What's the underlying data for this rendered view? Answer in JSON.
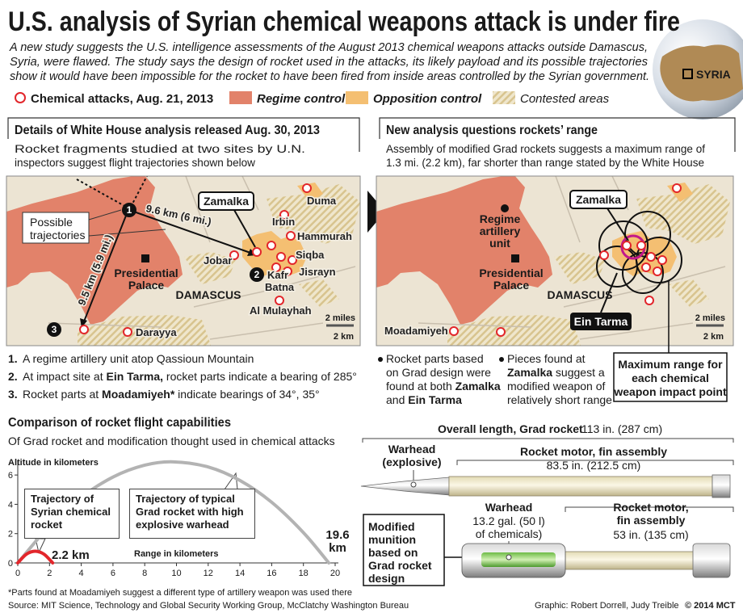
{
  "header": {
    "title": "U.S. analysis of Syrian chemical weapons attack is under fire",
    "intro": [
      "A new study suggests the U.S. intelligence assessments of the August 2013 chemical weapons attacks outside Damascus,",
      "Syria, were flawed. The study says the design of rocket used in the attacks, its likely payload and its possible trajectories",
      "show it would have been impossible for the rocket to have been fired from inside areas controlled by the Syrian government."
    ]
  },
  "globe_label": "SYRIA",
  "legend": [
    "Chemical attacks, Aug. 21, 2013",
    "Regime control",
    "Opposition control",
    "Contested areas"
  ],
  "left_panel": {
    "title": "Details of White House analysis released Aug. 30, 2013",
    "description": [
      "Rocket fragments studied at two sites by U.N.",
      "inspectors suggest flight trajectories shown below"
    ]
  },
  "right_panel": {
    "title": "New analysis questions rockets’ range",
    "description": [
      "Assembly of modified Grad rockets suggests a maximum range of",
      "1.3 mi. (2.2 km), far shorter than range stated by the White House"
    ]
  },
  "left_map": {
    "labels": [
      "Zamalka",
      "Duma",
      "Irbin",
      "Hammurah",
      "Siqba",
      "Jisrayn",
      "Jobar",
      "Kafr",
      "Batna",
      "Presidential",
      "Palace",
      "DAMASCUS",
      "Al Mulayhah",
      "Darayya"
    ],
    "trajectory_label": [
      "Possible",
      "trajectories"
    ],
    "distances": [
      "9.6 km (6 mi.)",
      "9.5 km (5.9 mi.)"
    ],
    "markers": [
      "1",
      "2",
      "3"
    ],
    "scale": [
      "2 miles",
      "2 km"
    ]
  },
  "right_map": {
    "labels": [
      "Zamalka",
      "Regime",
      "artillery",
      "unit",
      "Presidential",
      "Palace",
      "DAMASCUS",
      "Moadamiyeh",
      "Ein Tarma"
    ],
    "scale": [
      "2 miles",
      "2 km"
    ]
  },
  "notes": [
    {
      "number": "1.",
      "parts": [
        "A regime artillery unit atop Qassioun Mountain"
      ]
    },
    {
      "number": "2.",
      "parts": [
        "At impact site at ",
        "Ein Tarma,",
        " rocket parts indicate a bearing of 285°"
      ]
    },
    {
      "number": "3.",
      "parts": [
        "Rocket parts at ",
        "Moadamiyeh*",
        " indicate bearings of 34°, 35°"
      ]
    }
  ],
  "bullets": [
    [
      [
        "Rocket parts based"
      ],
      [
        "on Grad design were"
      ],
      [
        "found at both ",
        "Zamalka"
      ],
      [
        "and ",
        "Ein Tarma"
      ]
    ],
    [
      [
        "Pieces found at"
      ],
      [
        "Zamalka",
        " suggest a"
      ],
      [
        "modified weapon of"
      ],
      [
        "relatively short range"
      ]
    ]
  ],
  "range_callout": [
    "Maximum range for",
    "each chemical",
    "weapon impact point"
  ],
  "chart_data": {
    "type": "line",
    "title": "Comparison of rocket flight capabilities",
    "subtitle": "Of Grad rocket and modification thought used in chemical attacks",
    "y_label": "Altitude in kilometers",
    "x_label": "Range in kilometers",
    "xlim": [
      0,
      20
    ],
    "ylim": [
      0,
      7
    ],
    "xticks": [
      0,
      2,
      4,
      6,
      8,
      10,
      12,
      14,
      16,
      18,
      20
    ],
    "yticks": [
      0,
      2,
      4,
      6
    ],
    "series": [
      {
        "name": "Trajectory of Syrian chemical rocket",
        "color": "#e2262b",
        "x": [
          0,
          0.55,
          1.1,
          1.65,
          2.2
        ],
        "values": [
          0,
          0.6,
          0.8,
          0.6,
          0
        ]
      },
      {
        "name": "Trajectory of typical Grad rocket with high explosive warhead",
        "color": "#b3b3b3",
        "x": [
          0,
          2,
          4,
          6,
          8,
          9.8,
          12,
          14,
          16,
          18,
          19.6
        ],
        "values": [
          0,
          2.53,
          4.48,
          5.86,
          6.67,
          6.9,
          6.55,
          5.63,
          4.14,
          2.07,
          0
        ]
      }
    ],
    "annotations": [
      "2.2 km",
      "19.6 km"
    ]
  },
  "rocket": {
    "overall_label": "Overall length, Grad rocket",
    "overall_value": "113 in. (287 cm)",
    "grad": {
      "warhead": [
        "Warhead",
        "(explosive)"
      ],
      "motor": "Rocket motor, fin assembly",
      "motor_length": "83.5 in. (212.5 cm)"
    },
    "modified": {
      "label": [
        "Modified",
        "munition",
        "based on",
        "Grad rocket",
        "design"
      ],
      "warhead": "Warhead",
      "payload": [
        "13.2 gal. (50 l)",
        "of chemicals)"
      ],
      "motor": [
        "Rocket motor,",
        "fin assembly"
      ],
      "motor_length": "53 in. (135 cm)"
    }
  },
  "footer": {
    "footnote": "*Parts found at Moadamiyeh suggest a different type of artillery weapon was used there",
    "source": "Source: MIT Science, Technology and Global Security Working Group, McClatchy Washington Bureau",
    "credit": "Graphic: Robert Dorrell, Judy Treible",
    "copyright": "© 2014 MCT"
  }
}
